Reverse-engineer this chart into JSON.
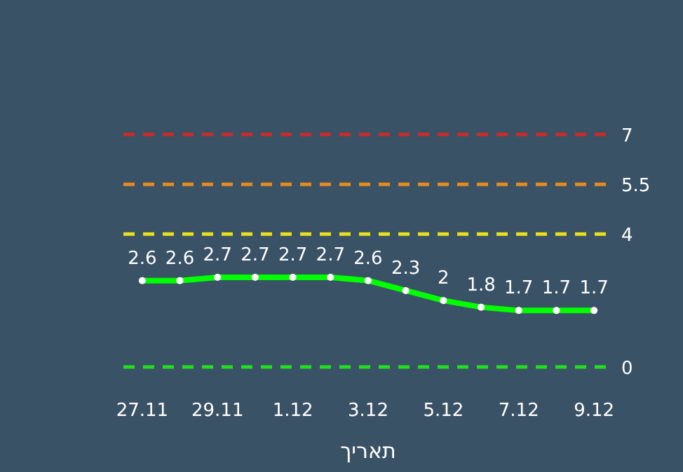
{
  "chart_data": {
    "type": "line",
    "xlabel": "תאריך",
    "categories": [
      "27.11",
      null,
      "29.11",
      null,
      "1.12",
      null,
      "3.12",
      null,
      "5.12",
      null,
      "7.12",
      null,
      "9.12"
    ],
    "values": [
      2.6,
      2.6,
      2.7,
      2.7,
      2.7,
      2.7,
      2.6,
      2.3,
      2,
      1.8,
      1.7,
      1.7,
      1.7
    ],
    "color": "#00ff00",
    "marker": "circle",
    "data_labels": true,
    "ref_lines": [
      {
        "axis": "y",
        "value": 7,
        "label": "7",
        "color": "#cc2a2a",
        "line_style": "dashed"
      },
      {
        "axis": "y",
        "value": 5.5,
        "label": "5.5",
        "color": "#e58a1f",
        "line_style": "dashed"
      },
      {
        "axis": "y",
        "value": 4,
        "label": "4",
        "color": "#e8e01c",
        "line_style": "dashed"
      },
      {
        "axis": "y",
        "value": 0,
        "label": "0",
        "color": "#22dd22",
        "line_style": "dashed"
      }
    ]
  }
}
